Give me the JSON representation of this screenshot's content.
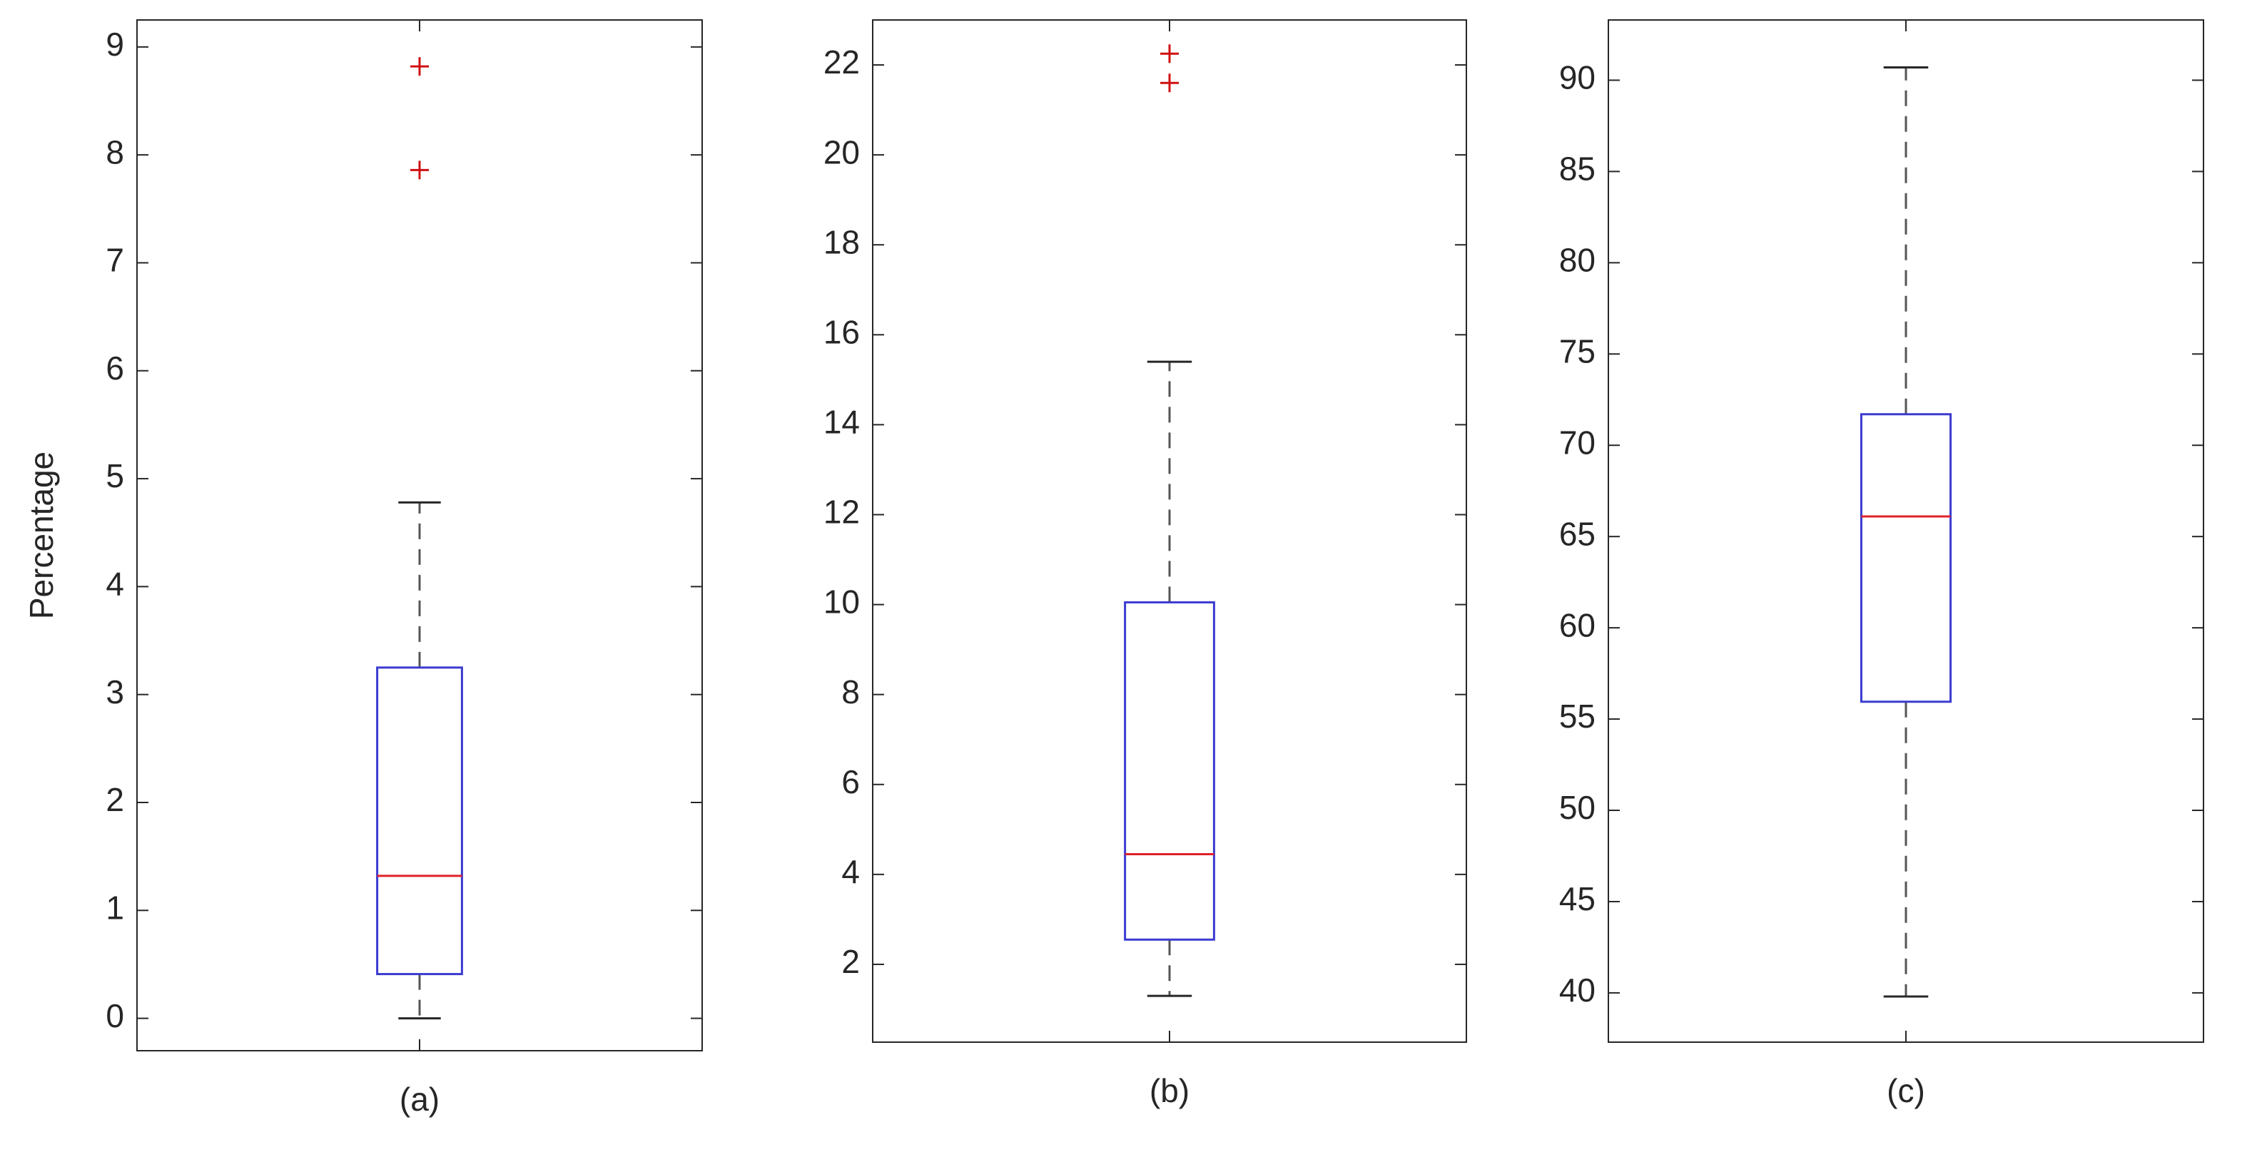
{
  "chart_data": [
    {
      "type": "box",
      "ylabel": "Percentage",
      "categories": [
        "(a)"
      ],
      "boxes": [
        {
          "whisker_low": 0,
          "q1": 0.41,
          "median": 1.32,
          "q3": 3.25,
          "whisker_high": 4.78,
          "outliers": [
            7.86,
            8.82
          ]
        }
      ],
      "ylim": [
        -0.3,
        9.25
      ],
      "yticks": [
        0,
        1,
        2,
        3,
        4,
        5,
        6,
        7,
        8,
        9
      ],
      "box_color": "#3b3bd1",
      "median_color": "#e0202a",
      "whisker_color": "#555555",
      "outlier_color": "#d01010"
    },
    {
      "type": "box",
      "categories": [
        "(b)"
      ],
      "boxes": [
        {
          "whisker_low": 1.3,
          "q1": 2.55,
          "median": 4.45,
          "q3": 10.05,
          "whisker_high": 15.4,
          "outliers": [
            21.6,
            22.25
          ]
        }
      ],
      "ylim": [
        0.27,
        23
      ],
      "yticks": [
        2,
        4,
        6,
        8,
        10,
        12,
        14,
        16,
        18,
        20,
        22
      ],
      "box_color": "#3b3bd1",
      "median_color": "#e0202a",
      "whisker_color": "#555555",
      "outlier_color": "#d01010"
    },
    {
      "type": "box",
      "categories": [
        "(c)"
      ],
      "boxes": [
        {
          "whisker_low": 39.8,
          "q1": 55.95,
          "median": 66.1,
          "q3": 71.7,
          "whisker_high": 90.7,
          "outliers": []
        }
      ],
      "ylim": [
        37.3,
        93.3
      ],
      "yticks": [
        40,
        45,
        50,
        55,
        60,
        65,
        70,
        75,
        80,
        85,
        90
      ],
      "box_color": "#3b3bd1",
      "median_color": "#e0202a",
      "whisker_color": "#555555",
      "outlier_color": "#d01010"
    }
  ]
}
